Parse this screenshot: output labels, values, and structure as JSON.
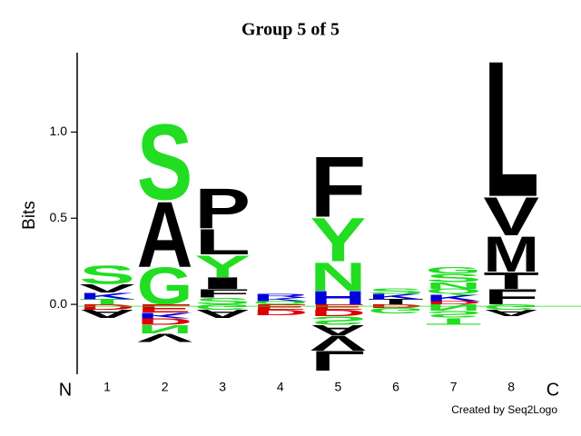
{
  "chart_data": {
    "type": "logo",
    "title": "Group 5 of 5",
    "y_label": "Bits",
    "categories": [
      "1",
      "2",
      "3",
      "4",
      "5",
      "6",
      "7",
      "8"
    ],
    "start_label": "N",
    "end_label": "C",
    "credit": "Created by Seq2Logo",
    "ylim": [
      -0.4,
      1.45
    ],
    "yticks": [
      {
        "value": 0,
        "label": "0.0"
      },
      {
        "value": 0.5,
        "label": "0.5"
      },
      {
        "value": 1,
        "label": "1.0"
      }
    ],
    "positions": [
      {
        "letters": [
          {
            "letter": "T",
            "color": "#22dd22",
            "value": 0.03
          },
          {
            "letter": "K",
            "color": "#0000dd",
            "value": 0.04
          },
          {
            "letter": "V",
            "color": "#000000",
            "value": 0.05
          },
          {
            "letter": "S",
            "color": "#22dd22",
            "value": 0.11
          },
          {
            "letter": "D",
            "color": "#dd0000",
            "value": -0.03
          },
          {
            "letter": "A",
            "color": "#000000",
            "value": -0.05
          }
        ]
      },
      {
        "letters": [
          {
            "letter": "G",
            "color": "#22dd22",
            "value": 0.22
          },
          {
            "letter": "A",
            "color": "#000000",
            "value": 0.39
          },
          {
            "letter": "S",
            "color": "#22dd22",
            "value": 0.45
          },
          {
            "letter": "E",
            "color": "#dd0000",
            "value": -0.05
          },
          {
            "letter": "K",
            "color": "#0000dd",
            "value": -0.03
          },
          {
            "letter": "D",
            "color": "#dd0000",
            "value": -0.04
          },
          {
            "letter": "N",
            "color": "#22dd22",
            "value": -0.05
          },
          {
            "letter": "V",
            "color": "#000000",
            "value": -0.05
          }
        ]
      },
      {
        "letters": [
          {
            "letter": "S",
            "color": "#22dd22",
            "value": 0.04
          },
          {
            "letter": "F",
            "color": "#000000",
            "value": 0.05
          },
          {
            "letter": "I",
            "color": "#000000",
            "value": 0.07
          },
          {
            "letter": "Y",
            "color": "#22dd22",
            "value": 0.13
          },
          {
            "letter": "L",
            "color": "#000000",
            "value": 0.15
          },
          {
            "letter": "P",
            "color": "#000000",
            "value": 0.24
          },
          {
            "letter": "G",
            "color": "#22dd22",
            "value": -0.03
          },
          {
            "letter": "A",
            "color": "#000000",
            "value": -0.05
          }
        ]
      },
      {
        "letters": [
          {
            "letter": "Q",
            "color": "#22dd22",
            "value": 0.02
          },
          {
            "letter": "K",
            "color": "#0000dd",
            "value": 0.02
          },
          {
            "letter": "R",
            "color": "#0000dd",
            "value": 0.02
          },
          {
            "letter": "E",
            "color": "#dd0000",
            "value": -0.03
          },
          {
            "letter": "D",
            "color": "#dd0000",
            "value": -0.03
          }
        ]
      },
      {
        "letters": [
          {
            "letter": "H",
            "color": "#0000dd",
            "value": 0.08
          },
          {
            "letter": "N",
            "color": "#22dd22",
            "value": 0.17
          },
          {
            "letter": "Y",
            "color": "#22dd22",
            "value": 0.26
          },
          {
            "letter": "F",
            "color": "#000000",
            "value": 0.36
          },
          {
            "letter": "E",
            "color": "#dd0000",
            "value": -0.03
          },
          {
            "letter": "D",
            "color": "#dd0000",
            "value": -0.04
          },
          {
            "letter": "S",
            "color": "#22dd22",
            "value": -0.05
          },
          {
            "letter": "A",
            "color": "#000000",
            "value": -0.06
          },
          {
            "letter": "V",
            "color": "#000000",
            "value": -0.09
          },
          {
            "letter": "L",
            "color": "#000000",
            "value": -0.12
          }
        ]
      },
      {
        "letters": [
          {
            "letter": "T",
            "color": "#000000",
            "value": 0.03
          },
          {
            "letter": "K",
            "color": "#0000dd",
            "value": 0.03
          },
          {
            "letter": "S",
            "color": "#22dd22",
            "value": 0.03
          },
          {
            "letter": "D",
            "color": "#dd0000",
            "value": -0.02
          },
          {
            "letter": "G",
            "color": "#22dd22",
            "value": -0.03
          }
        ]
      },
      {
        "letters": [
          {
            "letter": "D",
            "color": "#dd0000",
            "value": 0.02
          },
          {
            "letter": "K",
            "color": "#0000dd",
            "value": 0.04
          },
          {
            "letter": "Q",
            "color": "#22dd22",
            "value": 0.03
          },
          {
            "letter": "N",
            "color": "#22dd22",
            "value": 0.04
          },
          {
            "letter": "S",
            "color": "#22dd22",
            "value": 0.05
          },
          {
            "letter": "G",
            "color": "#22dd22",
            "value": 0.04
          },
          {
            "letter": "N",
            "color": "#22dd22",
            "value": -0.04
          },
          {
            "letter": "S",
            "color": "#22dd22",
            "value": -0.04
          },
          {
            "letter": "T",
            "color": "#22dd22",
            "value": -0.04
          }
        ]
      },
      {
        "letters": [
          {
            "letter": "F",
            "color": "#000000",
            "value": 0.09
          },
          {
            "letter": "T",
            "color": "#000000",
            "value": 0.1
          },
          {
            "letter": "M",
            "color": "#000000",
            "value": 0.21
          },
          {
            "letter": "V",
            "color": "#000000",
            "value": 0.23
          },
          {
            "letter": "L",
            "color": "#000000",
            "value": 0.81
          },
          {
            "letter": "G",
            "color": "#22dd22",
            "value": -0.03
          },
          {
            "letter": "A",
            "color": "#000000",
            "value": -0.04
          }
        ]
      }
    ]
  }
}
